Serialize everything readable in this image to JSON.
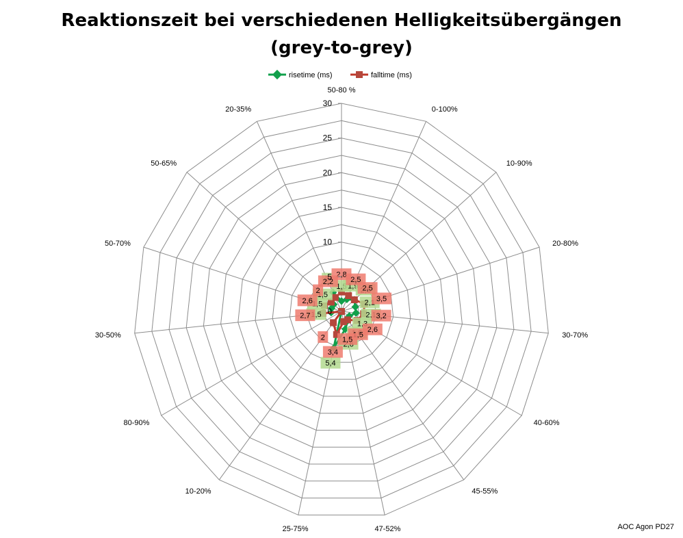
{
  "chart_data": {
    "type": "radar",
    "title": "Reaktionszeit bei verschiedenen Helligkeitsübergängen",
    "subtitle": "(grey-to-grey)",
    "categories": [
      "50-80 %",
      "0-100%",
      "10-90%",
      "20-80%",
      "30-70%",
      "40-60%",
      "45-55%",
      "47-52%",
      "25-75%",
      "10-20%",
      "80-90%",
      "30-50%",
      "50-70%",
      "50-65%",
      "20-35%"
    ],
    "series": [
      {
        "name": "risetime (ms)",
        "color": "#11a04b",
        "marker": "diamond",
        "label_bg": "#b3d98f",
        "values": [
          1.5,
          1.9,
          2.5,
          2.1,
          2.1,
          1.3,
          1.6,
          2.6,
          5.4,
          0,
          0,
          1.5,
          1.5,
          1.5,
          3
        ],
        "labels": [
          "1,5",
          "1,9",
          "2,5",
          "2,1",
          "2,1",
          "1,3",
          "1,6",
          "2,6",
          "5,4",
          "",
          "",
          "1,5",
          "1,5",
          "1,5",
          "3"
        ]
      },
      {
        "name": "falltime (ms)",
        "color": "#c0392b",
        "marker": "square",
        "label_bg": "#ee7b6e",
        "values": [
          2.8,
          2.5,
          2.5,
          3.5,
          3.2,
          2.6,
          1.5,
          1.5,
          3.4,
          2,
          0,
          2.7,
          2.6,
          2,
          2.2
        ],
        "labels": [
          "2,8",
          "2,5",
          "2,5",
          "3,5",
          "3,2",
          "2,6",
          "1,5",
          "1,5",
          "3,4",
          "2",
          "",
          "2,7",
          "2,6",
          "2",
          "2,2"
        ]
      }
    ],
    "r_ticks": [
      "0",
      "5",
      "10",
      "15",
      "20",
      "25",
      "30"
    ],
    "r_max": 30,
    "grid": true,
    "legend_position": "top"
  },
  "footer": "AOC Agon PD27"
}
